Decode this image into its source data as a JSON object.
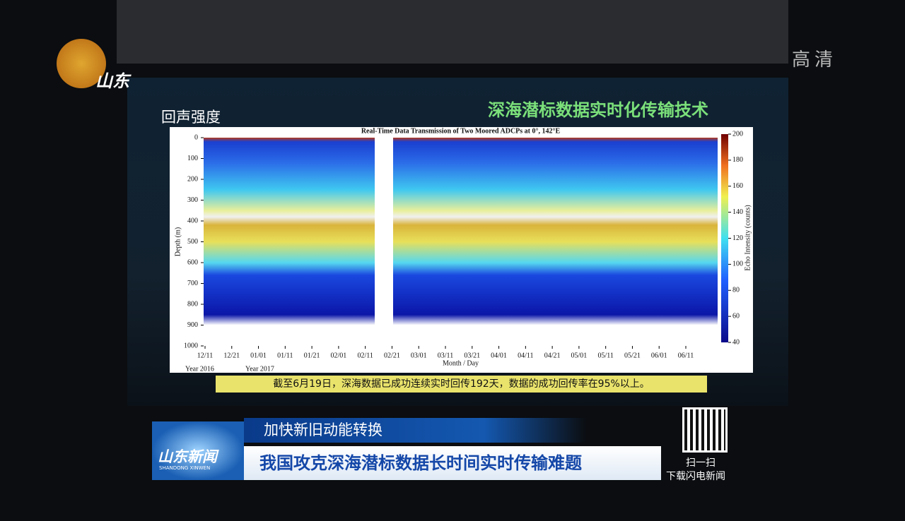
{
  "channel": {
    "logo": "山东",
    "quality": "高清"
  },
  "slide": {
    "title": "深海潜标数据实时化传输技术",
    "subtitle": "回声强度",
    "chart": {
      "title": "Real-Time Data Transmission of Two Moored ADCPs at 0°, 142°E",
      "y_label": "Depth (m)",
      "x_label": "Month / Day",
      "categories": [
        "12/11",
        "12/21",
        "01/01",
        "01/11",
        "01/21",
        "02/01",
        "02/11",
        "02/21",
        "03/01",
        "03/11",
        "03/21",
        "04/01",
        "04/11",
        "04/21",
        "05/01",
        "05/11",
        "05/21",
        "06/01",
        "06/11"
      ],
      "years": [
        "Year 2016",
        "Year 2017"
      ],
      "ylim": [
        0,
        1000
      ],
      "yticks": [
        0,
        100,
        200,
        300,
        400,
        500,
        600,
        700,
        800,
        900,
        1000
      ],
      "colorbar": {
        "label": "Echo Intensity (counts)",
        "lim": [
          40,
          200
        ],
        "ticks": [
          40,
          60,
          80,
          100,
          120,
          140,
          160,
          180,
          200
        ]
      }
    },
    "caption": "截至6月19日，深海数据已成功连续实时回传192天，数据的成功回传率在95%以上。"
  },
  "lower_third": {
    "program": "山东新闻",
    "program_en": "SHANDONG XINWEN",
    "topic": "加快新旧动能转换",
    "headline": "我国攻克深海潜标数据长时间实时传输难题"
  },
  "qr": {
    "line1": "扫一扫",
    "line2": "下载闪电新闻"
  }
}
